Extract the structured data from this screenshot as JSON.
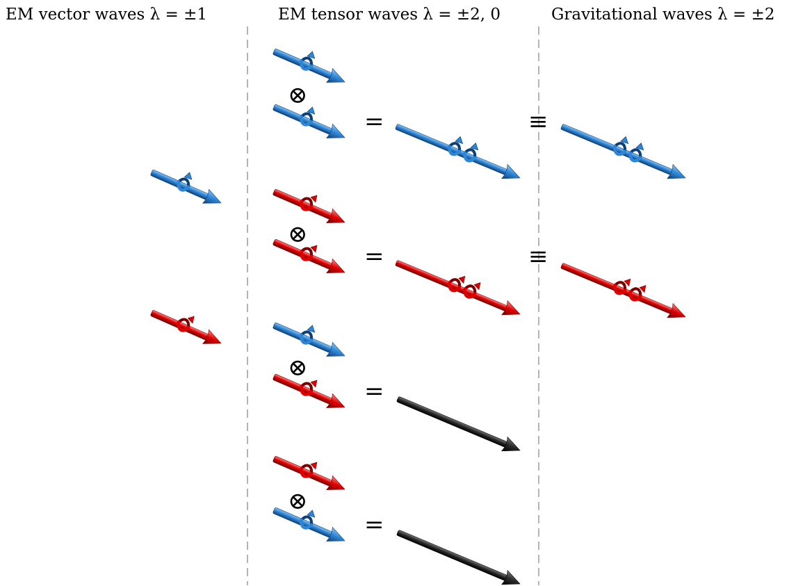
{
  "headers": {
    "vector": "EM vector waves λ = ±1",
    "tensor": "EM tensor waves λ = ±2, 0",
    "gravity": "Gravitational waves λ = ±2"
  },
  "symbols": {
    "tensor_product": "⊗",
    "equals": "=",
    "equivalent": "≡"
  },
  "colors": {
    "positive_helicity": "#2f86d4",
    "negative_helicity": "#e00000",
    "zero_helicity": "#2b2b2b"
  }
}
